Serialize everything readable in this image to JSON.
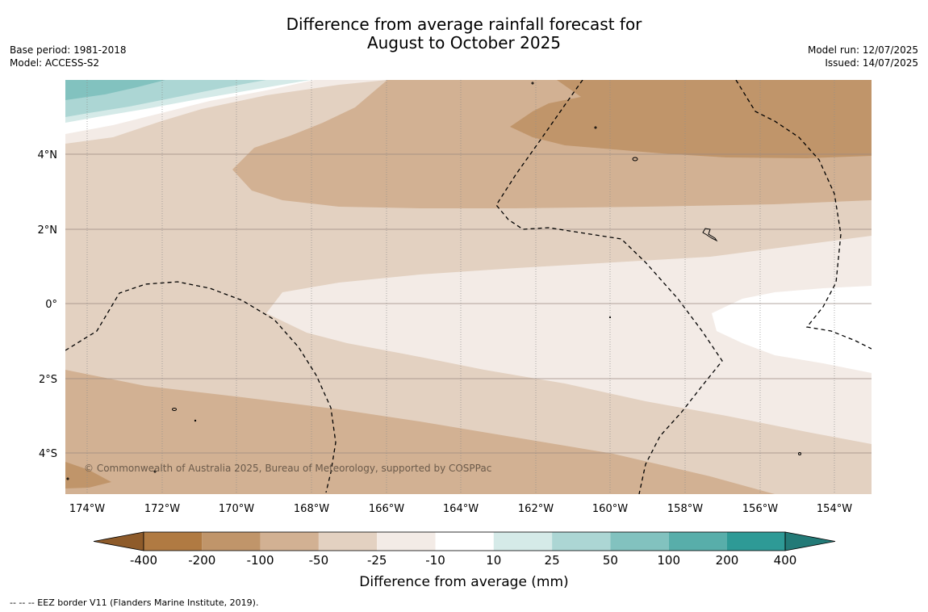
{
  "title": {
    "line1": "Difference from average rainfall forecast for",
    "line2": "August to October 2025"
  },
  "meta_left": {
    "base_period": "Base period: 1981-2018",
    "model": "Model: ACCESS-S2"
  },
  "meta_right": {
    "model_run": "Model run: 12/07/2025",
    "issued": "Issued: 14/07/2025"
  },
  "map": {
    "lon_labels": [
      "174°W",
      "172°W",
      "170°W",
      "168°W",
      "166°W",
      "164°W",
      "162°W",
      "160°W",
      "158°W",
      "156°W",
      "154°W"
    ],
    "lat_labels": [
      "4°N",
      "2°N",
      "0°",
      "2°S",
      "4°S"
    ],
    "copyright": "© Commonwealth of Australia 2025, Bureau of Meteorology, supported by COSPPac",
    "fill_colors": {
      "dry_400_200": "#b07a42",
      "dry_200_100": "#c0956a",
      "dry_100_50": "#d2b193",
      "dry_50_25": "#e3d1c1",
      "dry_25_10": "#f3ebe6",
      "neutral": "#ffffff",
      "wet_10_25": "#d5eae8",
      "wet_25_50": "#acd6d4",
      "wet_50_100": "#82c2bf",
      "wet_100_200": "#58aeaa",
      "wet_200_400": "#2e9a96"
    }
  },
  "colorbar": {
    "ticks": [
      "-400",
      "-200",
      "-100",
      "-50",
      "-25",
      "-10",
      "10",
      "25",
      "50",
      "100",
      "200",
      "400"
    ],
    "colors": [
      "#b07a42",
      "#c0956a",
      "#d2b193",
      "#e3d1c1",
      "#f3ebe6",
      "#ffffff",
      "#d5eae8",
      "#acd6d4",
      "#82c2bf",
      "#58aeaa",
      "#2e9a96"
    ],
    "under_color": "#8e5b2a",
    "over_color": "#237a77",
    "label": "Difference from average (mm)"
  },
  "footer": "--  --  -- EEZ border V11 (Flanders Marine Institute, 2019)."
}
